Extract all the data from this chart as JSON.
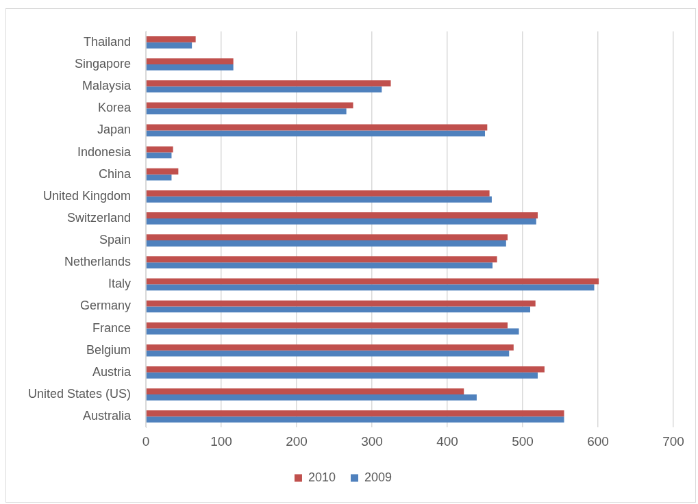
{
  "chart_data": {
    "type": "bar",
    "orientation": "horizontal",
    "categories": [
      "Thailand",
      "Singapore",
      "Malaysia",
      "Korea",
      "Japan",
      "Indonesia",
      "China",
      "United Kingdom",
      "Switzerland",
      "Spain",
      "Netherlands",
      "Italy",
      "Germany",
      "France",
      "Belgium",
      "Austria",
      "United States (US)",
      "Australia"
    ],
    "series": [
      {
        "name": "2010",
        "color": "#c0504d",
        "values": [
          66,
          116,
          325,
          275,
          453,
          36,
          43,
          456,
          520,
          480,
          466,
          601,
          517,
          480,
          488,
          529,
          422,
          555
        ]
      },
      {
        "name": "2009",
        "color": "#4f81bd",
        "values": [
          61,
          116,
          313,
          266,
          450,
          34,
          34,
          459,
          518,
          478,
          460,
          595,
          510,
          495,
          482,
          520,
          439,
          555
        ]
      }
    ],
    "xlim": [
      0,
      700
    ],
    "xticks": [
      0,
      100,
      200,
      300,
      400,
      500,
      600,
      700
    ],
    "grid": "x",
    "legend": "bottom"
  }
}
